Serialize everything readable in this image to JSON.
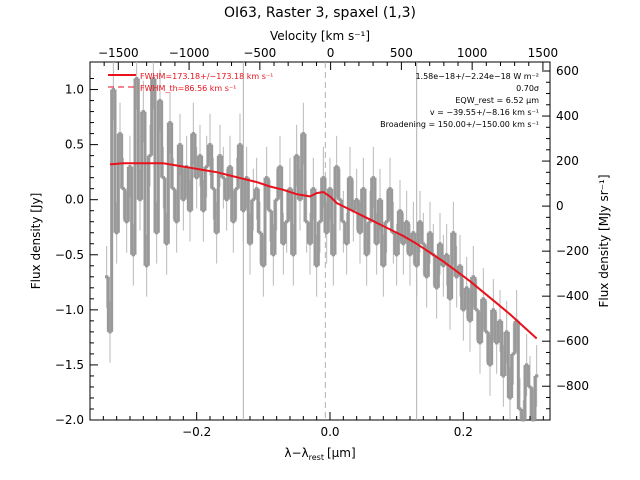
{
  "chart_data": {
    "type": "line",
    "title": "OI63, Raster 3, spaxel (1,3)",
    "xlabel": "λ−λ",
    "xlabel_sub": "rest",
    "xlabel_unit": "[μm]",
    "ylabel": "Flux density [Jy]",
    "top_xlabel": "Velocity [km s⁻¹]",
    "right_ylabel": "Flux density [MJy sr⁻¹]",
    "xlim": [
      -0.36,
      0.33
    ],
    "ylim": [
      -2.0,
      1.25
    ],
    "right_ylim": [
      -950,
      640
    ],
    "top_xlim": [
      -1700,
      1550
    ],
    "x_ticks": [
      -0.2,
      0.0,
      0.2
    ],
    "x_tick_labels": [
      "−0.2",
      "0.0",
      "0.2"
    ],
    "y_ticks": [
      1.0,
      0.5,
      0.0,
      -0.5,
      -1.0,
      -1.5,
      -2.0
    ],
    "y_tick_labels": [
      "1.0",
      "0.5",
      "0.0",
      "−0.5",
      "−1.0",
      "−1.5",
      "−2.0"
    ],
    "top_ticks": [
      -1500,
      -1000,
      -500,
      0,
      500,
      1000,
      1500
    ],
    "top_tick_labels": [
      "−1500",
      "−1000",
      "−500",
      "0",
      "500",
      "1000",
      "1500"
    ],
    "right_ticks": [
      600,
      400,
      200,
      0,
      -200,
      -400,
      -600,
      -800
    ],
    "right_tick_labels": [
      "600",
      "400",
      "200",
      "0",
      "−200",
      "−400",
      "−600",
      "−800"
    ],
    "vertical_lines": [
      -0.13,
      -0.007,
      0.13
    ],
    "legend": {
      "placement": "top-left",
      "entries": [
        "FWHM=173.18+/−173.18 km s⁻¹",
        "FWHM_th=86.56 km s⁻¹"
      ]
    },
    "annotations": [
      "1.58e−18+/−2.24e−18 W m⁻²",
      "0.70σ",
      "EQW_rest = 6.52 μm",
      "v = −39.55+/−8.16 km s⁻¹",
      "Broadening = 150.00+/−150.00 km s⁻¹"
    ],
    "colors": {
      "data": "#999999",
      "fit": "#e8121c",
      "errorbar": "#b8b8b8"
    },
    "series": [
      {
        "style": "step",
        "x": [
          -0.335,
          -0.33,
          -0.325,
          -0.32,
          -0.315,
          -0.31,
          -0.305,
          -0.3,
          -0.295,
          -0.29,
          -0.285,
          -0.28,
          -0.275,
          -0.27,
          -0.265,
          -0.26,
          -0.255,
          -0.25,
          -0.245,
          -0.24,
          -0.235,
          -0.23,
          -0.225,
          -0.22,
          -0.215,
          -0.21,
          -0.205,
          -0.2,
          -0.195,
          -0.19,
          -0.185,
          -0.18,
          -0.175,
          -0.17,
          -0.165,
          -0.16,
          -0.155,
          -0.15,
          -0.145,
          -0.14,
          -0.135,
          -0.13,
          -0.125,
          -0.12,
          -0.115,
          -0.11,
          -0.105,
          -0.1,
          -0.095,
          -0.09,
          -0.085,
          -0.08,
          -0.075,
          -0.07,
          -0.065,
          -0.06,
          -0.055,
          -0.05,
          -0.045,
          -0.04,
          -0.035,
          -0.03,
          -0.025,
          -0.02,
          -0.015,
          -0.01,
          -0.005,
          0.0,
          0.005,
          0.01,
          0.015,
          0.02,
          0.025,
          0.03,
          0.035,
          0.04,
          0.045,
          0.05,
          0.055,
          0.06,
          0.065,
          0.07,
          0.075,
          0.08,
          0.085,
          0.09,
          0.095,
          0.1,
          0.105,
          0.11,
          0.115,
          0.12,
          0.125,
          0.13,
          0.135,
          0.14,
          0.145,
          0.15,
          0.155,
          0.16,
          0.165,
          0.17,
          0.175,
          0.18,
          0.185,
          0.19,
          0.195,
          0.2,
          0.205,
          0.21,
          0.215,
          0.22,
          0.225,
          0.23,
          0.235,
          0.24,
          0.245,
          0.25,
          0.255,
          0.26,
          0.265,
          0.27,
          0.275,
          0.28,
          0.285,
          0.29,
          0.295,
          0.3,
          0.305,
          0.31
        ],
        "y": [
          -0.7,
          -1.2,
          1.0,
          -0.3,
          0.6,
          0.1,
          -0.2,
          0.3,
          -0.5,
          1.1,
          0.0,
          0.8,
          -0.6,
          0.4,
          1.1,
          -0.3,
          0.9,
          0.2,
          -0.4,
          0.7,
          0.1,
          -0.2,
          0.5,
          0.0,
          0.3,
          -0.1,
          0.6,
          0.2,
          0.4,
          -0.1,
          0.3,
          0.5,
          0.1,
          -0.3,
          0.4,
          0.2,
          0.0,
          0.3,
          -0.2,
          0.1,
          0.5,
          -0.1,
          0.2,
          -0.4,
          0.0,
          0.1,
          -0.3,
          -0.6,
          0.2,
          -0.1,
          -0.5,
          0.0,
          0.3,
          -0.4,
          -0.2,
          0.1,
          -0.5,
          0.4,
          0.0,
          0.6,
          -0.2,
          -0.4,
          0.1,
          -0.6,
          -0.2,
          0.2,
          -0.3,
          0.1,
          -0.5,
          0.3,
          0.0,
          -0.2,
          -0.4,
          0.2,
          -0.1,
          0.0,
          -0.3,
          0.1,
          -0.5,
          -0.2,
          0.2,
          -0.4,
          0.0,
          -0.6,
          -0.2,
          0.1,
          -0.3,
          -0.5,
          -0.1,
          -0.4,
          -0.2,
          -0.5,
          -0.3,
          -0.6,
          -0.2,
          -0.4,
          -0.7,
          -0.3,
          -0.5,
          -0.8,
          -0.4,
          -0.6,
          -0.5,
          -0.9,
          -0.3,
          -0.7,
          -0.6,
          -1.0,
          -0.8,
          -1.1,
          -0.7,
          -1.0,
          -1.3,
          -0.9,
          -1.2,
          -1.5,
          -1.0,
          -1.3,
          -1.1,
          -1.6,
          -1.2,
          -1.8,
          -1.4,
          -1.1,
          -1.9,
          -2.1,
          -1.5,
          -1.7,
          -2.0,
          -1.6
        ]
      },
      {
        "style": "line",
        "x": [
          -0.33,
          -0.31,
          -0.29,
          -0.27,
          -0.25,
          -0.23,
          -0.21,
          -0.19,
          -0.17,
          -0.15,
          -0.13,
          -0.11,
          -0.09,
          -0.07,
          -0.05,
          -0.03,
          -0.02,
          -0.01,
          0.0,
          0.01,
          0.03,
          0.05,
          0.07,
          0.09,
          0.11,
          0.13,
          0.15,
          0.17,
          0.19,
          0.21,
          0.23,
          0.25,
          0.27,
          0.29,
          0.31
        ],
        "y": [
          0.32,
          0.33,
          0.33,
          0.33,
          0.33,
          0.31,
          0.29,
          0.27,
          0.25,
          0.22,
          0.19,
          0.16,
          0.12,
          0.09,
          0.05,
          0.03,
          0.06,
          0.07,
          0.03,
          -0.03,
          -0.09,
          -0.15,
          -0.21,
          -0.27,
          -0.33,
          -0.4,
          -0.48,
          -0.56,
          -0.65,
          -0.74,
          -0.84,
          -0.94,
          -1.04,
          -1.15,
          -1.26
        ]
      }
    ]
  }
}
